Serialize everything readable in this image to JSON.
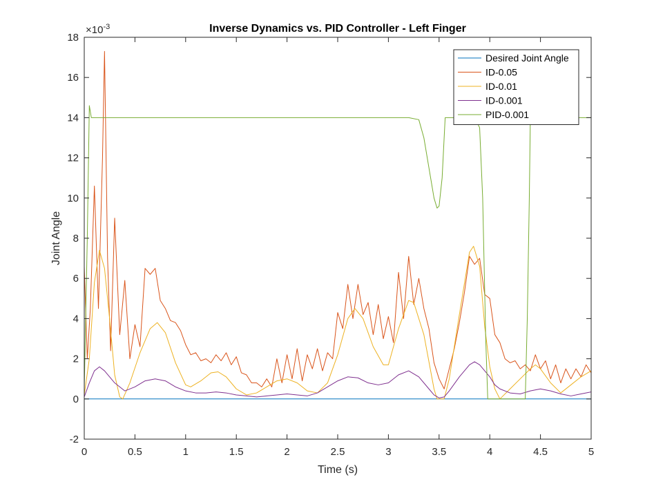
{
  "chart_data": {
    "type": "line",
    "title": "Inverse Dynamics vs. PID Controller - Left Finger",
    "xlabel": "Time (s)",
    "ylabel": "Joint Angle",
    "exponent_label": "×10",
    "exponent_power": "-3",
    "xlim": [
      0,
      5
    ],
    "ylim": [
      -2,
      18
    ],
    "xticks": [
      0,
      0.5,
      1,
      1.5,
      2,
      2.5,
      3,
      3.5,
      4,
      4.5,
      5
    ],
    "xtick_labels": [
      "0",
      "0.5",
      "1",
      "1.5",
      "2",
      "2.5",
      "3",
      "3.5",
      "4",
      "4.5",
      "5"
    ],
    "yticks": [
      -2,
      0,
      2,
      4,
      6,
      8,
      10,
      12,
      14,
      16,
      18
    ],
    "ytick_labels": [
      "-2",
      "0",
      "2",
      "4",
      "6",
      "8",
      "10",
      "12",
      "14",
      "16",
      "18"
    ],
    "grid": false,
    "legend_position": "top-right",
    "series": [
      {
        "name": "Desired Joint Angle",
        "color": "#0072BD",
        "points": [
          [
            0,
            0
          ],
          [
            5,
            0
          ]
        ]
      },
      {
        "name": "ID-0.05",
        "color": "#D95319",
        "points": [
          [
            0,
            6.6
          ],
          [
            0.03,
            2.0
          ],
          [
            0.06,
            4.5
          ],
          [
            0.1,
            10.6
          ],
          [
            0.14,
            4.5
          ],
          [
            0.18,
            12.0
          ],
          [
            0.2,
            17.3
          ],
          [
            0.23,
            7.0
          ],
          [
            0.26,
            2.4
          ],
          [
            0.3,
            9.0
          ],
          [
            0.35,
            3.2
          ],
          [
            0.4,
            5.9
          ],
          [
            0.45,
            2.0
          ],
          [
            0.5,
            3.7
          ],
          [
            0.55,
            2.6
          ],
          [
            0.6,
            6.5
          ],
          [
            0.65,
            6.2
          ],
          [
            0.7,
            6.5
          ],
          [
            0.75,
            4.9
          ],
          [
            0.8,
            4.5
          ],
          [
            0.85,
            3.9
          ],
          [
            0.9,
            3.8
          ],
          [
            0.95,
            3.4
          ],
          [
            1.0,
            2.7
          ],
          [
            1.05,
            2.2
          ],
          [
            1.1,
            2.3
          ],
          [
            1.15,
            1.9
          ],
          [
            1.2,
            2.0
          ],
          [
            1.25,
            1.8
          ],
          [
            1.3,
            2.2
          ],
          [
            1.35,
            1.9
          ],
          [
            1.4,
            2.3
          ],
          [
            1.45,
            1.7
          ],
          [
            1.5,
            2.1
          ],
          [
            1.55,
            1.3
          ],
          [
            1.6,
            1.2
          ],
          [
            1.65,
            0.8
          ],
          [
            1.7,
            0.8
          ],
          [
            1.75,
            0.6
          ],
          [
            1.8,
            1.0
          ],
          [
            1.85,
            0.6
          ],
          [
            1.9,
            2.0
          ],
          [
            1.95,
            0.8
          ],
          [
            2.0,
            2.2
          ],
          [
            2.05,
            1.0
          ],
          [
            2.1,
            2.5
          ],
          [
            2.15,
            0.9
          ],
          [
            2.2,
            2.2
          ],
          [
            2.25,
            1.5
          ],
          [
            2.3,
            2.5
          ],
          [
            2.35,
            1.4
          ],
          [
            2.4,
            2.3
          ],
          [
            2.45,
            2.0
          ],
          [
            2.5,
            4.3
          ],
          [
            2.55,
            3.5
          ],
          [
            2.6,
            5.7
          ],
          [
            2.65,
            4.0
          ],
          [
            2.7,
            5.7
          ],
          [
            2.75,
            4.2
          ],
          [
            2.8,
            4.8
          ],
          [
            2.85,
            3.2
          ],
          [
            2.9,
            4.7
          ],
          [
            2.95,
            3.0
          ],
          [
            3.0,
            4.1
          ],
          [
            3.05,
            2.8
          ],
          [
            3.1,
            6.3
          ],
          [
            3.15,
            4.0
          ],
          [
            3.2,
            7.1
          ],
          [
            3.25,
            4.7
          ],
          [
            3.3,
            6.0
          ],
          [
            3.35,
            4.5
          ],
          [
            3.4,
            3.5
          ],
          [
            3.45,
            1.8
          ],
          [
            3.5,
            1.0
          ],
          [
            3.55,
            0.5
          ],
          [
            3.6,
            1.5
          ],
          [
            3.65,
            2.5
          ],
          [
            3.7,
            3.8
          ],
          [
            3.75,
            5.3
          ],
          [
            3.8,
            7.1
          ],
          [
            3.85,
            6.7
          ],
          [
            3.9,
            7.0
          ],
          [
            3.95,
            5.2
          ],
          [
            4.0,
            5.0
          ],
          [
            4.05,
            3.2
          ],
          [
            4.1,
            2.8
          ],
          [
            4.15,
            2.0
          ],
          [
            4.2,
            1.8
          ],
          [
            4.25,
            1.9
          ],
          [
            4.3,
            1.5
          ],
          [
            4.35,
            1.7
          ],
          [
            4.4,
            1.4
          ],
          [
            4.45,
            2.2
          ],
          [
            4.5,
            1.5
          ],
          [
            4.55,
            1.9
          ],
          [
            4.6,
            1.0
          ],
          [
            4.65,
            1.7
          ],
          [
            4.7,
            0.8
          ],
          [
            4.75,
            1.5
          ],
          [
            4.8,
            1.0
          ],
          [
            4.85,
            1.5
          ],
          [
            4.9,
            1.1
          ],
          [
            4.95,
            1.7
          ],
          [
            5.0,
            1.3
          ]
        ]
      },
      {
        "name": "ID-0.01",
        "color": "#EDB120",
        "points": [
          [
            0,
            0.2
          ],
          [
            0.05,
            2.0
          ],
          [
            0.1,
            5.8
          ],
          [
            0.15,
            7.4
          ],
          [
            0.2,
            6.5
          ],
          [
            0.25,
            4.0
          ],
          [
            0.3,
            1.2
          ],
          [
            0.35,
            0.1
          ],
          [
            0.38,
            0
          ],
          [
            0.45,
            0.8
          ],
          [
            0.55,
            2.3
          ],
          [
            0.65,
            3.5
          ],
          [
            0.72,
            3.8
          ],
          [
            0.8,
            3.3
          ],
          [
            0.9,
            1.8
          ],
          [
            1.0,
            0.7
          ],
          [
            1.05,
            0.6
          ],
          [
            1.15,
            0.9
          ],
          [
            1.25,
            1.3
          ],
          [
            1.32,
            1.35
          ],
          [
            1.4,
            1.1
          ],
          [
            1.5,
            0.5
          ],
          [
            1.6,
            0.2
          ],
          [
            1.7,
            0.3
          ],
          [
            1.8,
            0.6
          ],
          [
            1.9,
            0.9
          ],
          [
            2.0,
            1.0
          ],
          [
            2.1,
            0.8
          ],
          [
            2.2,
            0.4
          ],
          [
            2.3,
            0.3
          ],
          [
            2.4,
            0.8
          ],
          [
            2.5,
            2.2
          ],
          [
            2.6,
            4.0
          ],
          [
            2.67,
            4.5
          ],
          [
            2.75,
            4.0
          ],
          [
            2.85,
            2.6
          ],
          [
            2.95,
            1.7
          ],
          [
            3.0,
            1.7
          ],
          [
            3.1,
            3.5
          ],
          [
            3.2,
            4.9
          ],
          [
            3.25,
            4.8
          ],
          [
            3.35,
            3.2
          ],
          [
            3.45,
            0.5
          ],
          [
            3.48,
            0
          ],
          [
            3.55,
            0
          ],
          [
            3.6,
            1.0
          ],
          [
            3.7,
            4.2
          ],
          [
            3.8,
            7.3
          ],
          [
            3.84,
            7.6
          ],
          [
            3.9,
            6.6
          ],
          [
            3.95,
            3.6
          ],
          [
            4.0,
            1.6
          ],
          [
            4.05,
            0.5
          ],
          [
            4.1,
            0
          ],
          [
            4.2,
            0.5
          ],
          [
            4.3,
            1.0
          ],
          [
            4.4,
            1.5
          ],
          [
            4.45,
            1.7
          ],
          [
            4.5,
            1.5
          ],
          [
            4.6,
            0.8
          ],
          [
            4.7,
            0.3
          ],
          [
            4.8,
            0.7
          ],
          [
            4.9,
            1.1
          ],
          [
            5.0,
            1.4
          ]
        ]
      },
      {
        "name": "ID-0.001",
        "color": "#7E2F8E",
        "points": [
          [
            0,
            0.1
          ],
          [
            0.05,
            0.8
          ],
          [
            0.1,
            1.4
          ],
          [
            0.15,
            1.6
          ],
          [
            0.2,
            1.4
          ],
          [
            0.3,
            0.8
          ],
          [
            0.4,
            0.4
          ],
          [
            0.5,
            0.6
          ],
          [
            0.6,
            0.9
          ],
          [
            0.7,
            1.0
          ],
          [
            0.8,
            0.9
          ],
          [
            0.9,
            0.6
          ],
          [
            1.0,
            0.4
          ],
          [
            1.1,
            0.3
          ],
          [
            1.2,
            0.3
          ],
          [
            1.3,
            0.35
          ],
          [
            1.4,
            0.3
          ],
          [
            1.5,
            0.2
          ],
          [
            1.6,
            0.15
          ],
          [
            1.7,
            0.1
          ],
          [
            1.8,
            0.15
          ],
          [
            1.9,
            0.2
          ],
          [
            2.0,
            0.25
          ],
          [
            2.1,
            0.2
          ],
          [
            2.2,
            0.15
          ],
          [
            2.3,
            0.3
          ],
          [
            2.4,
            0.6
          ],
          [
            2.5,
            0.9
          ],
          [
            2.6,
            1.1
          ],
          [
            2.7,
            1.05
          ],
          [
            2.8,
            0.8
          ],
          [
            2.9,
            0.7
          ],
          [
            3.0,
            0.8
          ],
          [
            3.1,
            1.2
          ],
          [
            3.2,
            1.4
          ],
          [
            3.3,
            1.1
          ],
          [
            3.4,
            0.5
          ],
          [
            3.45,
            0.2
          ],
          [
            3.5,
            0.05
          ],
          [
            3.55,
            0.1
          ],
          [
            3.6,
            0.4
          ],
          [
            3.7,
            1.1
          ],
          [
            3.8,
            1.7
          ],
          [
            3.85,
            1.85
          ],
          [
            3.9,
            1.7
          ],
          [
            4.0,
            1.1
          ],
          [
            4.05,
            0.7
          ],
          [
            4.1,
            0.5
          ],
          [
            4.2,
            0.3
          ],
          [
            4.3,
            0.25
          ],
          [
            4.4,
            0.4
          ],
          [
            4.5,
            0.5
          ],
          [
            4.6,
            0.4
          ],
          [
            4.7,
            0.25
          ],
          [
            4.8,
            0.15
          ],
          [
            4.9,
            0.25
          ],
          [
            5.0,
            0.35
          ]
        ]
      },
      {
        "name": "PID-0.001",
        "color": "#77AC30",
        "points": [
          [
            0,
            0.5
          ],
          [
            0.03,
            8.0
          ],
          [
            0.05,
            14.6
          ],
          [
            0.07,
            14.0
          ],
          [
            3.2,
            14.0
          ],
          [
            3.3,
            13.9
          ],
          [
            3.35,
            13.0
          ],
          [
            3.4,
            11.5
          ],
          [
            3.45,
            10.0
          ],
          [
            3.48,
            9.5
          ],
          [
            3.5,
            9.6
          ],
          [
            3.53,
            11.0
          ],
          [
            3.56,
            14.0
          ],
          [
            3.65,
            14.0
          ],
          [
            3.85,
            14.0
          ],
          [
            3.9,
            13.5
          ],
          [
            3.93,
            10.0
          ],
          [
            3.96,
            3.0
          ],
          [
            3.98,
            0
          ],
          [
            4.35,
            0
          ],
          [
            4.37,
            4.0
          ],
          [
            4.39,
            10.0
          ],
          [
            4.4,
            14.0
          ],
          [
            5.0,
            14.0
          ]
        ]
      }
    ]
  }
}
